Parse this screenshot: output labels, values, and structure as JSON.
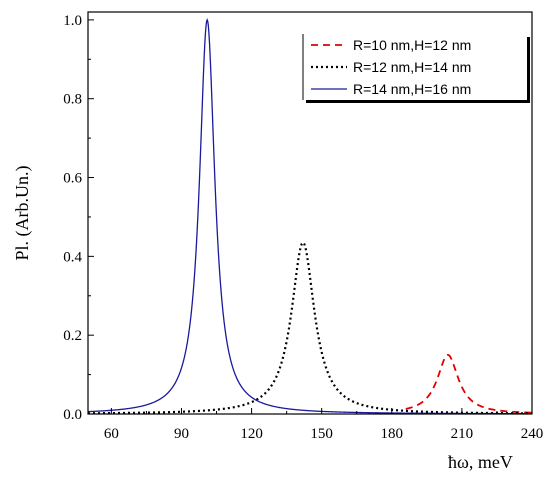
{
  "chart_data": {
    "type": "line",
    "title": "",
    "xlabel": "ħω, meV",
    "ylabel": "Pl. (Arb.Un.)",
    "xlim": [
      50,
      240
    ],
    "ylim": [
      0,
      1.02
    ],
    "x_ticks": [
      60,
      90,
      120,
      150,
      180,
      210,
      240
    ],
    "x_tick_labels": [
      "60",
      "90",
      "120",
      "150",
      "180",
      "210",
      "240"
    ],
    "y_ticks": [
      0.0,
      0.2,
      0.4,
      0.6,
      0.8,
      1.0
    ],
    "y_tick_labels": [
      "0.0",
      "0.2",
      "0.4",
      "0.6",
      "0.8",
      "1.0"
    ],
    "grid": false,
    "legend_position": "top-right",
    "series": [
      {
        "name": "R=10 nm,H=12 nm",
        "color": "#e00000",
        "dash": "dashed",
        "peak_x": 204,
        "peak_y": 0.15,
        "half_width": 5.5,
        "x_range": [
          186,
          240
        ],
        "points": [
          [
            186,
            0.0
          ],
          [
            190,
            0.014
          ],
          [
            195,
            0.033
          ],
          [
            200,
            0.088
          ],
          [
            204,
            0.15
          ],
          [
            208,
            0.088
          ],
          [
            213,
            0.033
          ],
          [
            218,
            0.014
          ],
          [
            225,
            0.005
          ],
          [
            232,
            0.002
          ],
          [
            240,
            0.0
          ]
        ]
      },
      {
        "name": "R=12 nm,H=14 nm",
        "color": "#000000",
        "dash": "dotted",
        "peak_x": 142,
        "peak_y": 0.435,
        "half_width": 6,
        "x_range": [
          50,
          240
        ],
        "points": [
          [
            50,
            0.0
          ],
          [
            90,
            0.005
          ],
          [
            110,
            0.014
          ],
          [
            125,
            0.048
          ],
          [
            135,
            0.19
          ],
          [
            142,
            0.435
          ],
          [
            149,
            0.19
          ],
          [
            159,
            0.048
          ],
          [
            175,
            0.014
          ],
          [
            200,
            0.004
          ],
          [
            240,
            0.0
          ]
        ]
      },
      {
        "name": "R=14 nm,H=16 nm",
        "color": "#1a1a9c",
        "dash": "solid",
        "peak_x": 101,
        "peak_y": 1.0,
        "half_width": 4,
        "x_range": [
          50,
          240
        ],
        "points": [
          [
            50,
            0.006
          ],
          [
            70,
            0.016
          ],
          [
            85,
            0.059
          ],
          [
            95,
            0.31
          ],
          [
            101,
            1.0
          ],
          [
            107,
            0.31
          ],
          [
            117,
            0.059
          ],
          [
            135,
            0.016
          ],
          [
            160,
            0.005
          ],
          [
            200,
            0.002
          ],
          [
            240,
            0.001
          ]
        ]
      }
    ]
  }
}
